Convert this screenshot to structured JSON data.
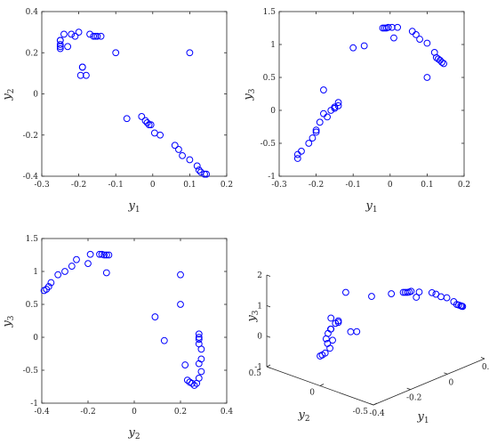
{
  "colors": {
    "marker": "#0000ff",
    "axis": "#262626",
    "background": "#ffffff"
  },
  "chart_data": [
    {
      "type": "scatter",
      "title": "",
      "xlabel": "y1",
      "ylabel": "y2",
      "xlim": [
        -0.3,
        0.2
      ],
      "ylim": [
        -0.4,
        0.4
      ],
      "xticks": [
        "-0.3",
        "-0.2",
        "-0.1",
        "0",
        "0.1",
        "0.2"
      ],
      "yticks": [
        "-0.4",
        "-0.2",
        "0",
        "0.2",
        "0.4"
      ],
      "grid": false,
      "x": [
        -0.25,
        -0.25,
        -0.25,
        -0.25,
        -0.25,
        -0.24,
        -0.23,
        -0.22,
        -0.21,
        -0.2,
        -0.19,
        -0.18,
        -0.17,
        -0.16,
        -0.155,
        -0.15,
        -0.14,
        -0.195,
        -0.19,
        -0.1,
        0.1,
        -0.07,
        -0.03,
        -0.02,
        -0.015,
        -0.01,
        -0.005,
        0.005,
        0.02,
        0.06,
        0.07,
        0.08,
        0.1,
        0.12,
        0.125,
        0.13,
        0.14,
        0.145
      ],
      "y": [
        0.26,
        0.24,
        0.23,
        0.22,
        0.26,
        0.29,
        0.23,
        0.29,
        0.28,
        0.3,
        0.13,
        0.09,
        0.29,
        0.28,
        0.28,
        0.28,
        0.28,
        0.09,
        0.13,
        0.2,
        0.2,
        -0.12,
        -0.11,
        -0.13,
        -0.14,
        -0.15,
        -0.15,
        -0.19,
        -0.2,
        -0.25,
        -0.27,
        -0.3,
        -0.32,
        -0.35,
        -0.37,
        -0.38,
        -0.39,
        -0.39
      ]
    },
    {
      "type": "scatter",
      "title": "",
      "xlabel": "y1",
      "ylabel": "y3",
      "xlim": [
        -0.3,
        0.2
      ],
      "ylim": [
        -1,
        1.5
      ],
      "xticks": [
        "-0.3",
        "-0.2",
        "-0.1",
        "0",
        "0.1",
        "0.2"
      ],
      "yticks": [
        "-1",
        "-0.5",
        "0",
        "0.5",
        "1",
        "1.5"
      ],
      "grid": false,
      "x": [
        -0.25,
        -0.25,
        -0.24,
        -0.22,
        -0.21,
        -0.2,
        -0.2,
        -0.19,
        -0.18,
        -0.17,
        -0.16,
        -0.15,
        -0.15,
        -0.14,
        -0.14,
        -0.18,
        -0.1,
        -0.07,
        -0.02,
        -0.015,
        -0.01,
        -0.005,
        0.005,
        0.01,
        0.02,
        0.06,
        0.07,
        0.08,
        0.1,
        0.12,
        0.125,
        0.13,
        0.135,
        0.14,
        0.145,
        0.1
      ],
      "y": [
        -0.73,
        -0.67,
        -0.62,
        -0.5,
        -0.42,
        -0.33,
        -0.3,
        -0.18,
        -0.05,
        -0.1,
        0.0,
        0.03,
        0.05,
        0.07,
        0.12,
        0.31,
        0.95,
        0.98,
        1.25,
        1.25,
        1.25,
        1.26,
        1.26,
        1.1,
        1.26,
        1.2,
        1.15,
        1.08,
        1.02,
        0.88,
        0.8,
        0.78,
        0.76,
        0.73,
        0.71,
        0.5
      ]
    },
    {
      "type": "scatter",
      "title": "",
      "xlabel": "y2",
      "ylabel": "y3",
      "xlim": [
        -0.4,
        0.4
      ],
      "ylim": [
        -1,
        1.5
      ],
      "xticks": [
        "-0.4",
        "-0.2",
        "0",
        "0.2",
        "0.4"
      ],
      "yticks": [
        "-1",
        "-0.5",
        "0",
        "0.5",
        "1",
        "1.5"
      ],
      "grid": false,
      "x": [
        -0.39,
        -0.38,
        -0.37,
        -0.36,
        -0.33,
        -0.3,
        -0.27,
        -0.25,
        -0.2,
        -0.19,
        -0.15,
        -0.14,
        -0.13,
        -0.12,
        -0.12,
        -0.11,
        0.09,
        0.13,
        0.2,
        0.2,
        0.22,
        0.23,
        0.24,
        0.25,
        0.26,
        0.27,
        0.28,
        0.28,
        0.28,
        0.28,
        0.29,
        0.29,
        0.28,
        0.29,
        0.28
      ],
      "y": [
        0.71,
        0.73,
        0.77,
        0.83,
        0.95,
        1.0,
        1.08,
        1.18,
        1.12,
        1.26,
        1.26,
        1.26,
        1.25,
        1.25,
        0.98,
        1.25,
        0.31,
        -0.05,
        0.95,
        0.5,
        -0.42,
        -0.65,
        -0.68,
        -0.7,
        -0.73,
        -0.7,
        0.05,
        0.0,
        -0.03,
        -0.1,
        -0.18,
        -0.33,
        -0.4,
        -0.52,
        -0.62
      ]
    },
    {
      "type": "scatter",
      "title": "",
      "projection": "3d",
      "xlabel": "y1",
      "ylabel": "y2",
      "zlabel": "y3",
      "xlim": [
        -0.4,
        0.2
      ],
      "ylim": [
        -0.5,
        0.5
      ],
      "zlim": [
        -1,
        2
      ],
      "xticks": [
        "-0.4",
        "-0.2",
        "0",
        "0.2"
      ],
      "yticks": [
        "-0.5",
        "0",
        "0.5"
      ],
      "zticks": [
        "-1",
        "0",
        "1",
        "2"
      ],
      "grid": false,
      "x": [
        -0.25,
        -0.25,
        -0.24,
        -0.22,
        -0.21,
        -0.2,
        -0.2,
        -0.19,
        -0.18,
        -0.17,
        -0.16,
        -0.15,
        -0.15,
        -0.14,
        -0.14,
        -0.18,
        -0.1,
        -0.07,
        -0.02,
        -0.015,
        -0.01,
        -0.005,
        0.005,
        0.01,
        0.02,
        0.06,
        0.07,
        0.08,
        0.1,
        0.12,
        0.125,
        0.13,
        0.135,
        0.14,
        0.145,
        0.1
      ],
      "y": [
        0.26,
        0.24,
        0.23,
        0.22,
        0.26,
        0.29,
        0.23,
        0.29,
        0.28,
        0.3,
        0.13,
        0.09,
        0.29,
        0.28,
        0.28,
        0.28,
        0.28,
        0.09,
        -0.12,
        -0.13,
        -0.14,
        -0.15,
        -0.15,
        -0.19,
        -0.2,
        -0.25,
        -0.27,
        -0.3,
        -0.32,
        -0.35,
        -0.37,
        -0.38,
        -0.39,
        -0.39,
        -0.39,
        0.2
      ],
      "z": [
        -0.73,
        -0.67,
        -0.62,
        -0.5,
        -0.42,
        -0.33,
        -0.3,
        -0.18,
        -0.05,
        -0.1,
        0.0,
        0.03,
        0.05,
        0.07,
        0.12,
        0.31,
        0.95,
        0.98,
        1.25,
        1.25,
        1.25,
        1.26,
        1.26,
        1.1,
        1.26,
        1.2,
        1.15,
        1.08,
        1.02,
        0.88,
        0.8,
        0.78,
        0.76,
        0.73,
        0.71,
        0.5
      ]
    }
  ]
}
